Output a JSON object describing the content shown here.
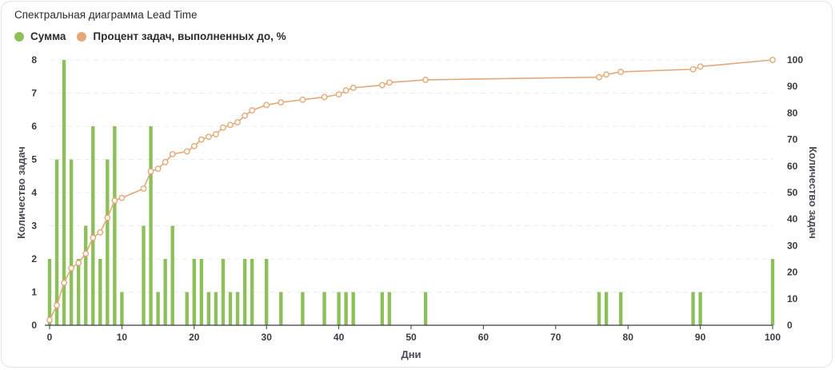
{
  "title": "Спектральная диаграмма Lead Time",
  "legend": [
    {
      "label": "Сумма",
      "color": "#8dbf5a"
    },
    {
      "label": "Процент задач, выполненных до, %",
      "color": "#e4a877"
    }
  ],
  "chart_data": {
    "type": "bar+line",
    "title": "Спектральная диаграмма Lead Time",
    "xlabel": "Дни",
    "ylabel_left": "Количество задач",
    "ylabel_right": "Количество задач",
    "xlim": [
      0,
      100
    ],
    "ylim_left": [
      0,
      8
    ],
    "ylim_right": [
      0,
      100
    ],
    "x_ticks": [
      0,
      10,
      20,
      30,
      40,
      50,
      60,
      70,
      80,
      90,
      100
    ],
    "y_ticks_left": [
      0,
      1,
      2,
      3,
      4,
      5,
      6,
      7,
      8
    ],
    "y_ticks_right": [
      0,
      10,
      20,
      30,
      40,
      50,
      60,
      70,
      80,
      90,
      100
    ],
    "grid": "horizontal dashed",
    "legend_position": "top-left",
    "series": [
      {
        "name": "Сумма",
        "type": "bar",
        "color": "#8dbf5a",
        "x": [
          0,
          1,
          2,
          3,
          4,
          5,
          6,
          7,
          8,
          9,
          10,
          13,
          14,
          15,
          16,
          17,
          19,
          20,
          21,
          22,
          23,
          24,
          25,
          26,
          27,
          28,
          30,
          32,
          35,
          38,
          40,
          41,
          42,
          46,
          47,
          52,
          76,
          77,
          79,
          89,
          90,
          100
        ],
        "values": [
          2,
          5,
          8,
          5,
          2,
          3,
          6,
          2,
          5,
          6,
          1,
          3,
          6,
          1,
          2,
          3,
          1,
          2,
          2,
          1,
          1,
          2,
          1,
          1,
          2,
          2,
          2,
          1,
          1,
          1,
          1,
          1,
          1,
          1,
          1,
          1,
          1,
          1,
          1,
          1,
          1,
          2
        ]
      },
      {
        "name": "Процент задач, выполненных до, %",
        "type": "line",
        "color": "#e4a877",
        "x": [
          0,
          1,
          2,
          3,
          4,
          5,
          6,
          7,
          8,
          9,
          10,
          13,
          14,
          15,
          16,
          17,
          19,
          20,
          21,
          22,
          23,
          24,
          25,
          26,
          27,
          28,
          30,
          32,
          35,
          38,
          40,
          41,
          42,
          46,
          47,
          52,
          76,
          77,
          79,
          89,
          90,
          100
        ],
        "values": [
          2,
          7.5,
          16,
          21.5,
          23.5,
          27,
          33,
          35,
          40.5,
          47,
          48,
          51.5,
          58,
          59,
          61.5,
          64.5,
          65.5,
          67.5,
          70,
          71,
          72,
          74.5,
          75.5,
          76.5,
          79,
          81,
          83,
          84,
          85,
          86,
          87,
          88.5,
          89.5,
          90.5,
          91.5,
          92.5,
          93.5,
          94.5,
          95.5,
          96.5,
          97.5,
          100
        ]
      }
    ]
  }
}
